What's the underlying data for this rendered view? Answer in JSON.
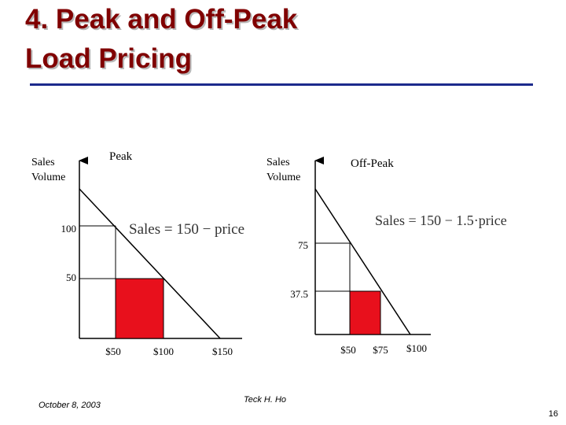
{
  "title": {
    "line1": "4. Peak and Off-Peak",
    "line2": "Load Pricing"
  },
  "colors": {
    "title": "#800000",
    "rule": "#1c2a8c",
    "revenue_box": "#e8101c"
  },
  "peak": {
    "y_label_line1": "Sales",
    "y_label_line2": "Volume",
    "panel_label": "Peak",
    "equation": "Sales = 150 − price",
    "y_ticks": [
      "100",
      "50"
    ],
    "x_ticks": [
      "$50",
      "$100",
      "$150"
    ]
  },
  "offpeak": {
    "y_label_line1": "Sales",
    "y_label_line2": "Volume",
    "panel_label": "Off-Peak",
    "equation": "Sales = 150 − 1.5·price",
    "y_ticks": [
      "75",
      "37.5"
    ],
    "x_ticks": [
      "$50",
      "$75",
      "$100"
    ]
  },
  "footer": {
    "date": "October 8, 2003",
    "author": "Teck H.  Ho",
    "page": "16"
  }
}
